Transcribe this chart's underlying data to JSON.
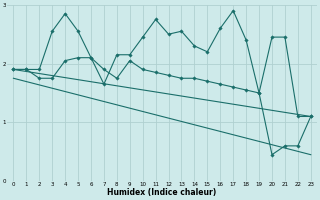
{
  "xlabel": "Humidex (Indice chaleur)",
  "ylabel": "",
  "xlim": [
    -0.5,
    23.5
  ],
  "ylim": [
    0,
    3
  ],
  "background_color": "#ceeaea",
  "grid_color": "#b0d0d0",
  "line_color": "#1a6e6a",
  "xticks": [
    0,
    1,
    2,
    3,
    4,
    5,
    6,
    7,
    8,
    9,
    10,
    11,
    12,
    13,
    14,
    15,
    16,
    17,
    18,
    19,
    20,
    21,
    22,
    23
  ],
  "yticks": [
    0,
    1,
    2,
    3
  ],
  "line1_x": [
    0,
    1,
    2,
    3,
    4,
    5,
    6,
    7,
    8,
    9,
    10,
    11,
    12,
    13,
    14,
    15,
    16,
    17,
    18,
    19,
    20,
    21,
    22,
    23
  ],
  "line1_y": [
    1.9,
    1.9,
    1.9,
    2.55,
    2.85,
    2.55,
    2.1,
    1.65,
    2.15,
    2.15,
    2.45,
    2.75,
    2.5,
    2.55,
    2.3,
    2.2,
    2.6,
    2.9,
    2.4,
    1.5,
    2.45,
    2.45,
    1.1,
    1.1
  ],
  "line2_x": [
    0,
    1,
    2,
    3,
    4,
    5,
    6,
    7,
    8,
    9,
    10,
    11,
    12,
    13,
    14,
    15,
    16,
    17,
    18,
    19,
    20,
    21,
    22,
    23
  ],
  "line2_y": [
    1.9,
    1.9,
    1.75,
    1.75,
    2.05,
    2.1,
    2.1,
    1.9,
    1.75,
    2.05,
    1.9,
    1.85,
    1.8,
    1.75,
    1.75,
    1.7,
    1.65,
    1.6,
    1.55,
    1.5,
    0.45,
    0.6,
    0.6,
    1.1
  ],
  "line3_x": [
    0,
    23
  ],
  "line3_y": [
    1.9,
    1.1
  ],
  "line4_x": [
    0,
    23
  ],
  "line4_y": [
    1.75,
    0.45
  ]
}
